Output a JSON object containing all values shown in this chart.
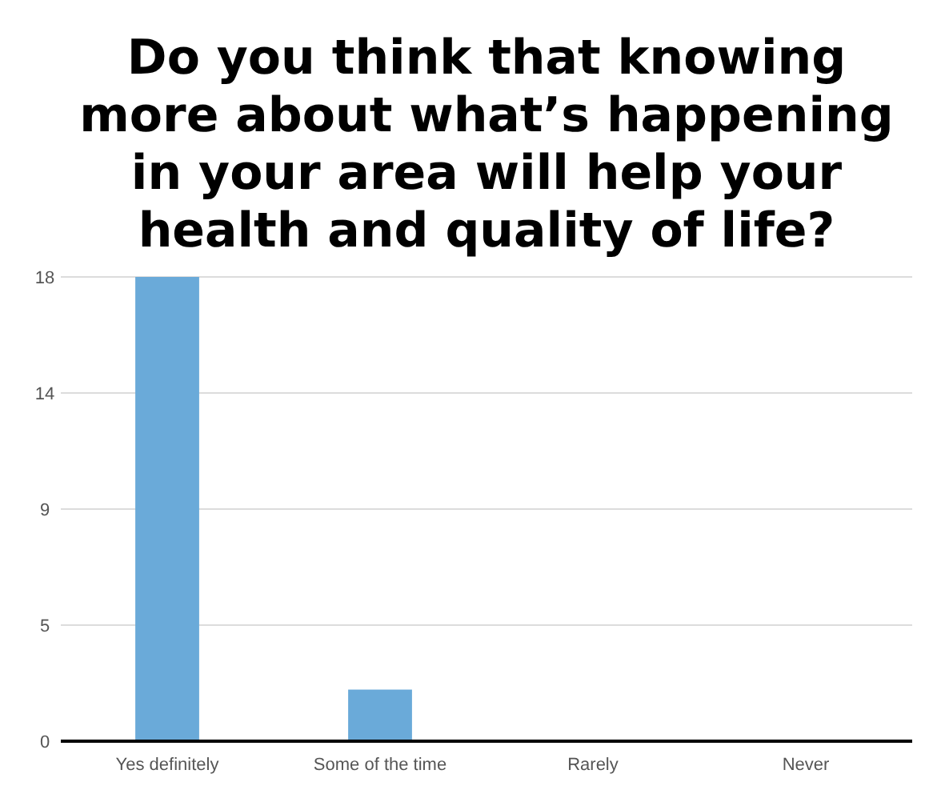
{
  "chart_data": {
    "type": "bar",
    "title": "Do you think that knowing more about what’s happening in your area will help your health and quality of life?",
    "categories": [
      "Yes definitely",
      "Some of the time",
      "Rarely",
      "Never"
    ],
    "values": [
      18,
      2,
      0,
      0
    ],
    "color": "#6aaad9",
    "ylim": [
      0,
      18
    ],
    "yticks": [
      0,
      {
        "value": 4.5,
        "label": "5"
      },
      9,
      {
        "value": 13.5,
        "label": "14"
      },
      18
    ],
    "grid": "y"
  }
}
